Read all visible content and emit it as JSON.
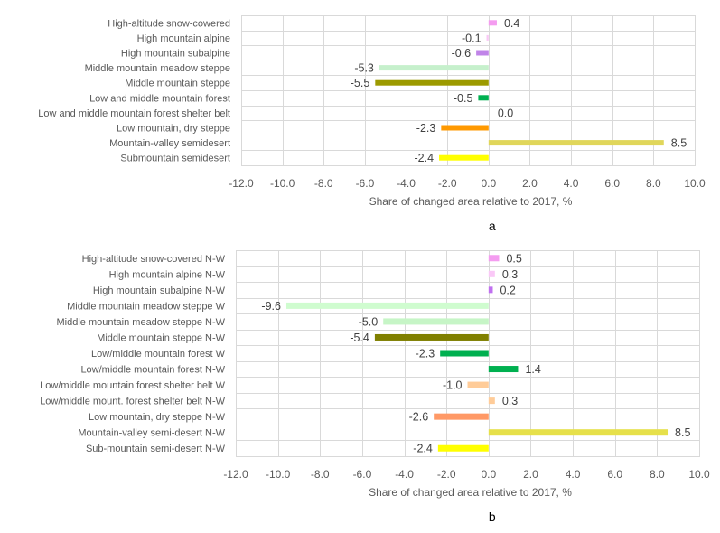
{
  "chart_data": [
    {
      "type": "bar",
      "orientation": "horizontal",
      "panel_label": "a",
      "title": "",
      "xlabel": "Share of changed area relative to 2017, %",
      "ylabel": "",
      "xlim": [
        -12.0,
        10.0
      ],
      "xticks": [
        "-12.0",
        "-10.0",
        "-8.0",
        "-6.0",
        "-4.0",
        "-2.0",
        "0.0",
        "2.0",
        "4.0",
        "6.0",
        "8.0",
        "10.0"
      ],
      "grid": true,
      "legend": "none",
      "categories": [
        "High-altitude snow-cowered",
        "High mountain alpine",
        "High mountain subalpine",
        "Middle mountain meadow steppe",
        "Middle mountain steppe",
        "Low and middle mountain forest",
        "Low and middle mountain forest shelter belt",
        "Low mountain, dry steppe",
        "Mountain-valley semidesert",
        "Submountain semidesert"
      ],
      "values": [
        0.4,
        -0.1,
        -0.6,
        -5.3,
        -5.5,
        -0.5,
        0.0,
        -2.3,
        8.5,
        -2.4
      ],
      "labels": [
        "0.4",
        "-0.1",
        "-0.6",
        "-5.3",
        "-5.5",
        "-0.5",
        "0.0",
        "-2.3",
        "8.5",
        "-2.4"
      ],
      "colors": [
        "#F49CF0",
        "#F9C8F5",
        "#C084E8",
        "#C6F0CC",
        "#9C9A00",
        "#00B050",
        "#BFBFBF",
        "#FF9900",
        "#E0D65A",
        "#FFFF00"
      ]
    },
    {
      "type": "bar",
      "orientation": "horizontal",
      "panel_label": "b",
      "title": "",
      "xlabel": "Share of changed area relative to 2017, %",
      "ylabel": "",
      "xlim": [
        -12.0,
        10.0
      ],
      "xticks": [
        "-12.0",
        "-10.0",
        "-8.0",
        "-6.0",
        "-4.0",
        "-2.0",
        "0.0",
        "2.0",
        "4.0",
        "6.0",
        "8.0",
        "10.0"
      ],
      "grid": true,
      "legend": "none",
      "categories": [
        "High-altitude snow-covered N-W",
        "High mountain alpine N-W",
        "High mountain subalpine N-W",
        "Middle mountain meadow steppe W",
        "Middle mountain meadow steppe N-W",
        "Middle mountain steppe N-W",
        "Low/middle mountain forest W",
        "Low/middle mountain forest N-W",
        "Low/middle mountain forest shelter belt W",
        "Low/middle mount. forest shelter belt N-W",
        "Low mountain, dry steppe N-W",
        "Mountain-valley semi-desert N-W",
        "Sub-mountain semi-desert N-W"
      ],
      "values": [
        0.5,
        0.3,
        0.2,
        -9.6,
        -5.0,
        -5.4,
        -2.3,
        1.4,
        -1.0,
        0.3,
        -2.6,
        8.5,
        -2.4
      ],
      "labels": [
        "0.5",
        "0.3",
        "0.2",
        "-9.6",
        "-5.0",
        "-5.4",
        "-2.3",
        "1.4",
        "-1.0",
        "0.3",
        "-2.6",
        "8.5",
        "-2.4"
      ],
      "colors": [
        "#F49CF0",
        "#FAC8F7",
        "#C070F0",
        "#CFFCCF",
        "#C6F5C6",
        "#808000",
        "#00B050",
        "#00B050",
        "#FFCC99",
        "#FFCC99",
        "#FF9966",
        "#E6E04A",
        "#FFFF00"
      ]
    }
  ]
}
